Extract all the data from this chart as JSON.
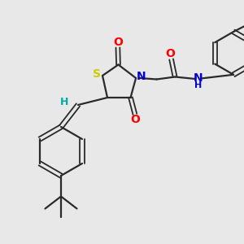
{
  "background_color": "#e8e8e8",
  "bond_color": "#2a2a2a",
  "S_color": "#cccc00",
  "N_color": "#0000cc",
  "O_color": "#ff0000",
  "H_color": "#00aaaa",
  "figsize": [
    3.0,
    3.0
  ],
  "dpi": 100,
  "xlim": [
    0,
    10
  ],
  "ylim": [
    0,
    10
  ]
}
